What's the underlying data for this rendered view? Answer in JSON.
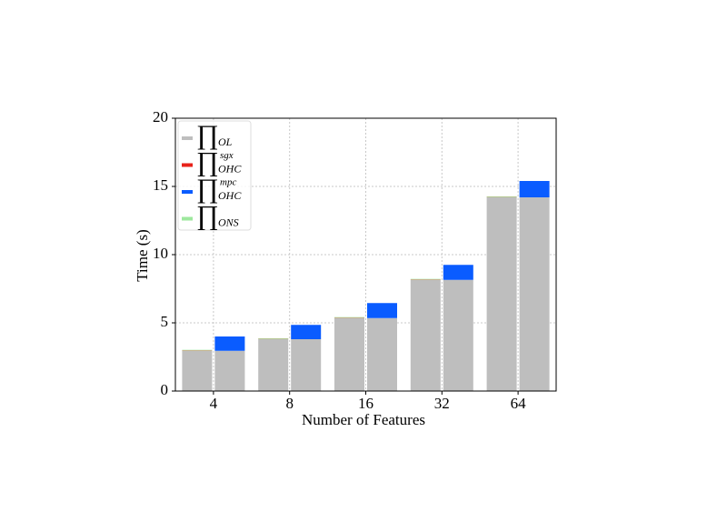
{
  "chart_data": {
    "type": "stacked-group-bar",
    "x_label": "Number of Features",
    "y_label": "Time (s)",
    "categories": [
      "4",
      "8",
      "16",
      "32",
      "64"
    ],
    "series": [
      {
        "name": "∏",
        "subscript": "OL",
        "color": "#bebebe",
        "values": [
          2.95,
          3.8,
          5.35,
          8.15,
          14.2
        ]
      },
      {
        "name": "∏",
        "subscript": "OHC",
        "superscript": "sgx",
        "color": "#e8221a",
        "values": [
          0.02,
          0.02,
          0.02,
          0.02,
          0.02
        ]
      },
      {
        "name": "∏",
        "subscript": "OHC",
        "superscript": "mpc",
        "color": "#0a5cff",
        "values": [
          1.05,
          1.05,
          1.1,
          1.1,
          1.2
        ]
      },
      {
        "name": "∏",
        "subscript": "ONS",
        "color": "#9ee89e",
        "values": [
          0.05,
          0.05,
          0.05,
          0.05,
          0.05
        ]
      }
    ],
    "stacks": [
      [
        0,
        1,
        3
      ],
      [
        0,
        2
      ]
    ],
    "ylim": [
      0,
      20
    ],
    "yticks": [
      0,
      5,
      10,
      15,
      20
    ],
    "grid": true,
    "legend": "upper left"
  }
}
